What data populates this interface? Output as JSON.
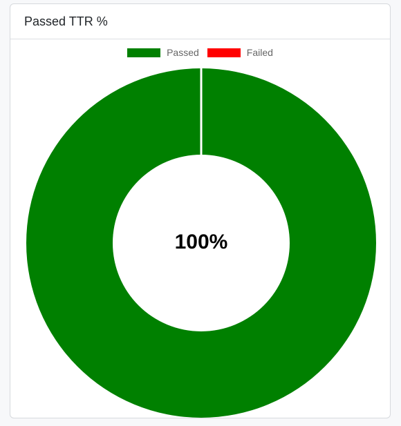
{
  "card": {
    "title": "Passed TTR %"
  },
  "chart_data": {
    "type": "pie",
    "variant": "doughnut",
    "series": [
      {
        "name": "Passed",
        "value": 100,
        "color": "#008000"
      },
      {
        "name": "Failed",
        "value": 0,
        "color": "#ff0000"
      }
    ],
    "center_label": "100%",
    "legend_position": "top"
  }
}
